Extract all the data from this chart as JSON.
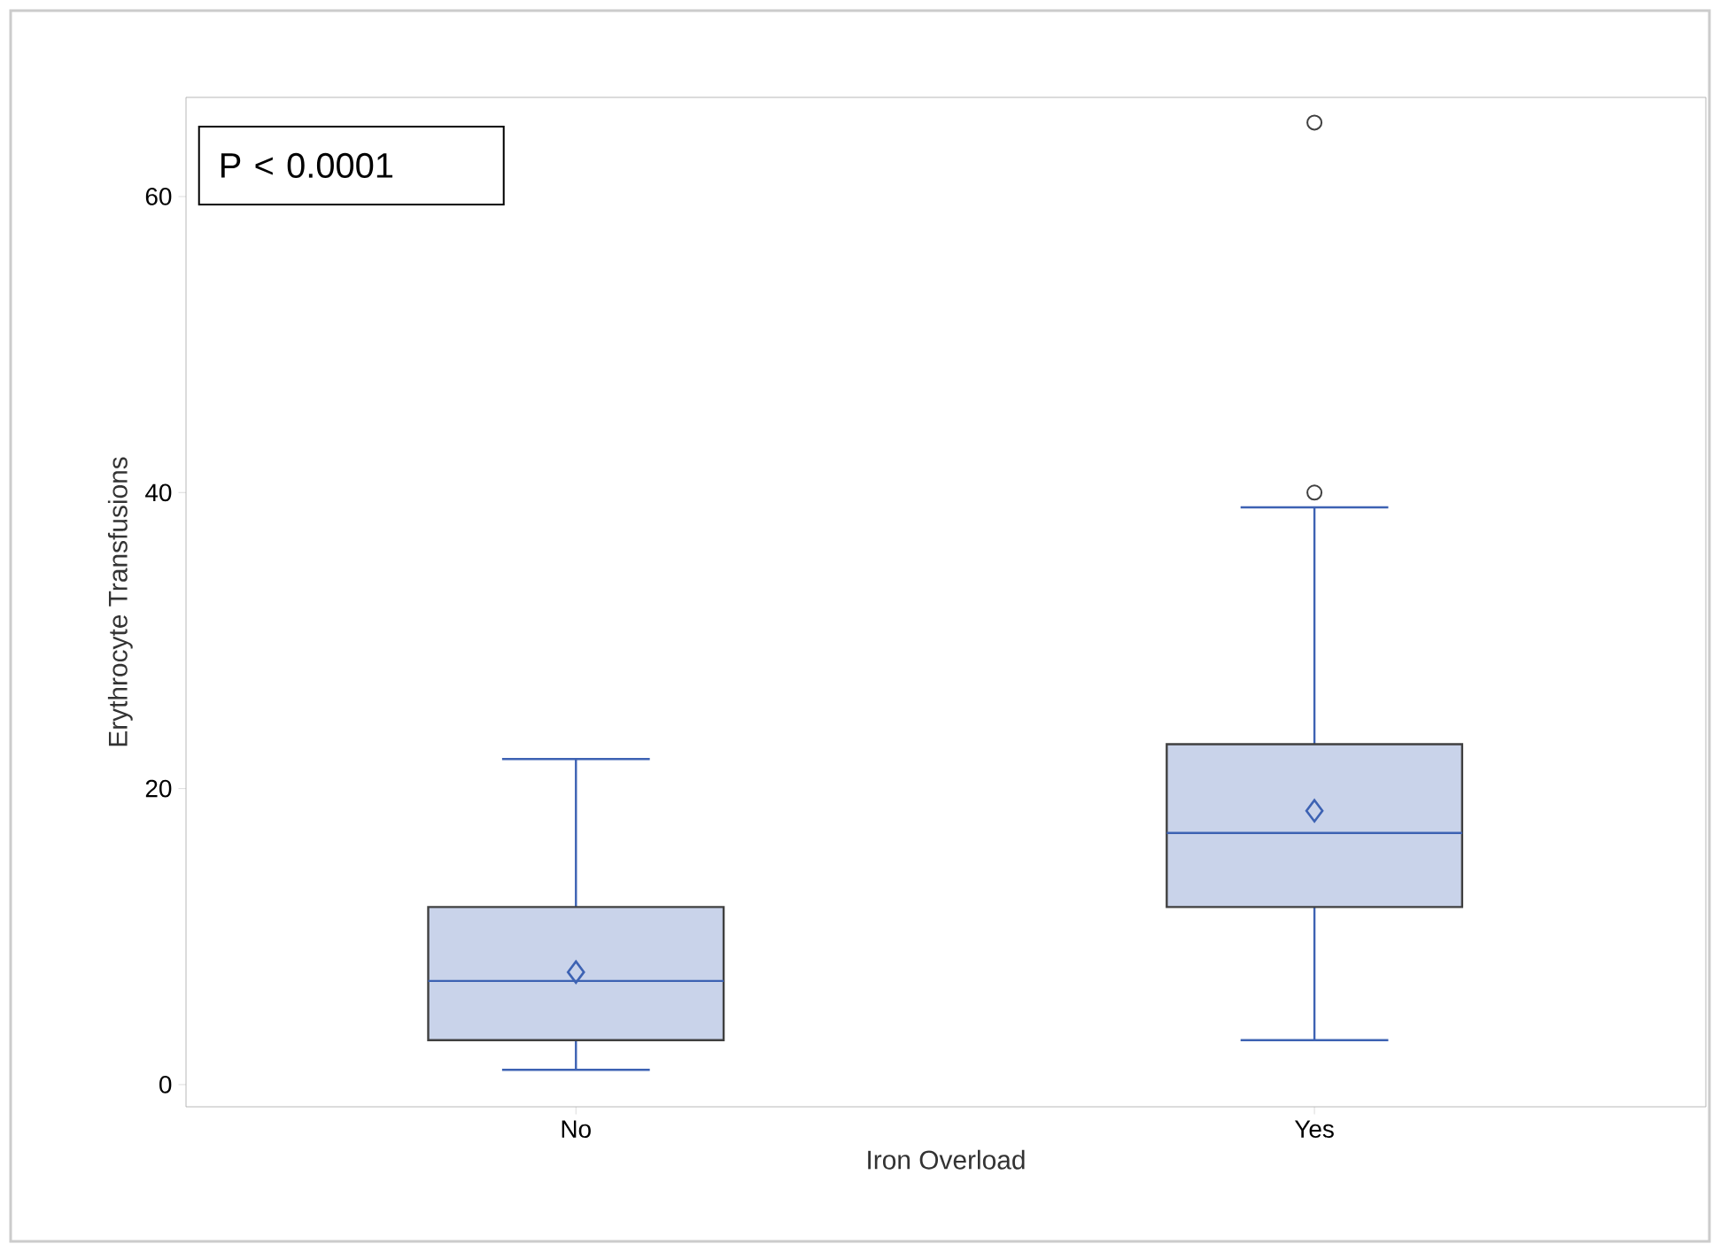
{
  "chart_data": {
    "type": "box",
    "xlabel": "Iron Overload",
    "ylabel": "Erythrocyte Transfusions",
    "categories": [
      "No",
      "Yes"
    ],
    "boxes": [
      {
        "low": 1,
        "q1": 3,
        "median": 7,
        "q3": 12,
        "high": 22,
        "mean": 7.6
      },
      {
        "low": 3,
        "q1": 12,
        "median": 17,
        "q3": 23,
        "high": 39,
        "mean": 18.5,
        "outliers": [
          40,
          65
        ]
      }
    ],
    "color": "#c9d3ea",
    "ylim": [
      -1.5,
      66.7
    ],
    "yticks": [
      0,
      20,
      40,
      60
    ],
    "marker": "diamond",
    "annotations": [
      "P < 0.0001"
    ]
  }
}
